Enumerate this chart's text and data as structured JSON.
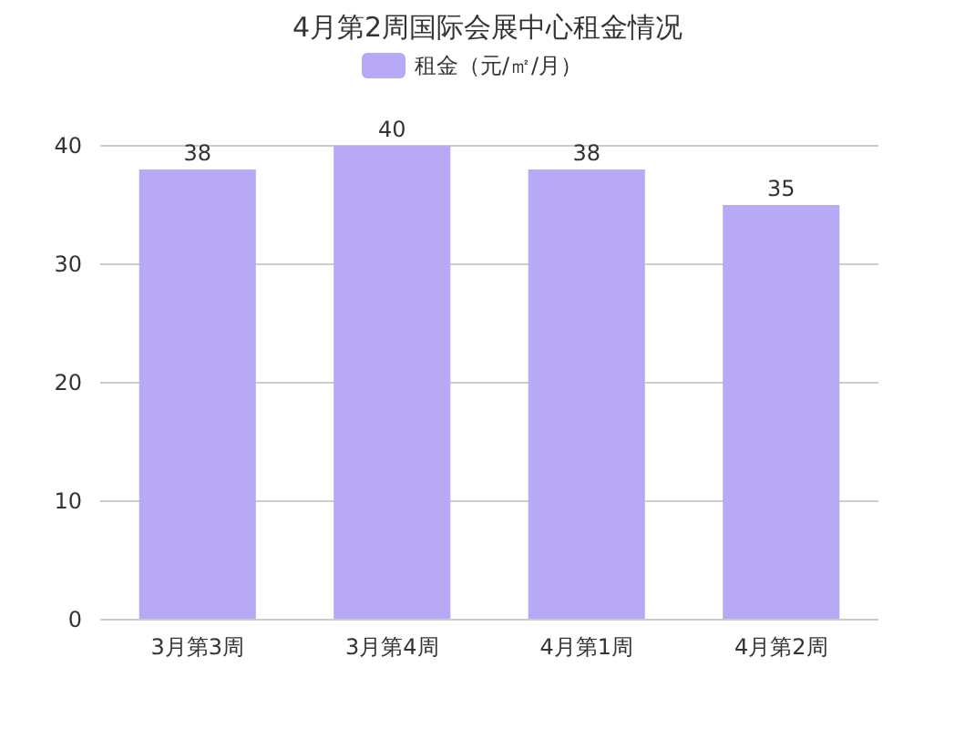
{
  "chart_data": {
    "type": "bar",
    "title": "4月第2周国际会展中心租金情况",
    "categories": [
      "3月第3周",
      "3月第4周",
      "4月第1周",
      "4月第2周"
    ],
    "series": [
      {
        "name": "租金（元/㎡/月）",
        "color": "#b8a9f7",
        "values": [
          38,
          40,
          38,
          35
        ]
      }
    ],
    "ylim": [
      0,
      40
    ],
    "yticks": [
      0,
      10,
      20,
      30,
      40
    ],
    "grid": "y",
    "legend": "top",
    "data_labels": true
  }
}
